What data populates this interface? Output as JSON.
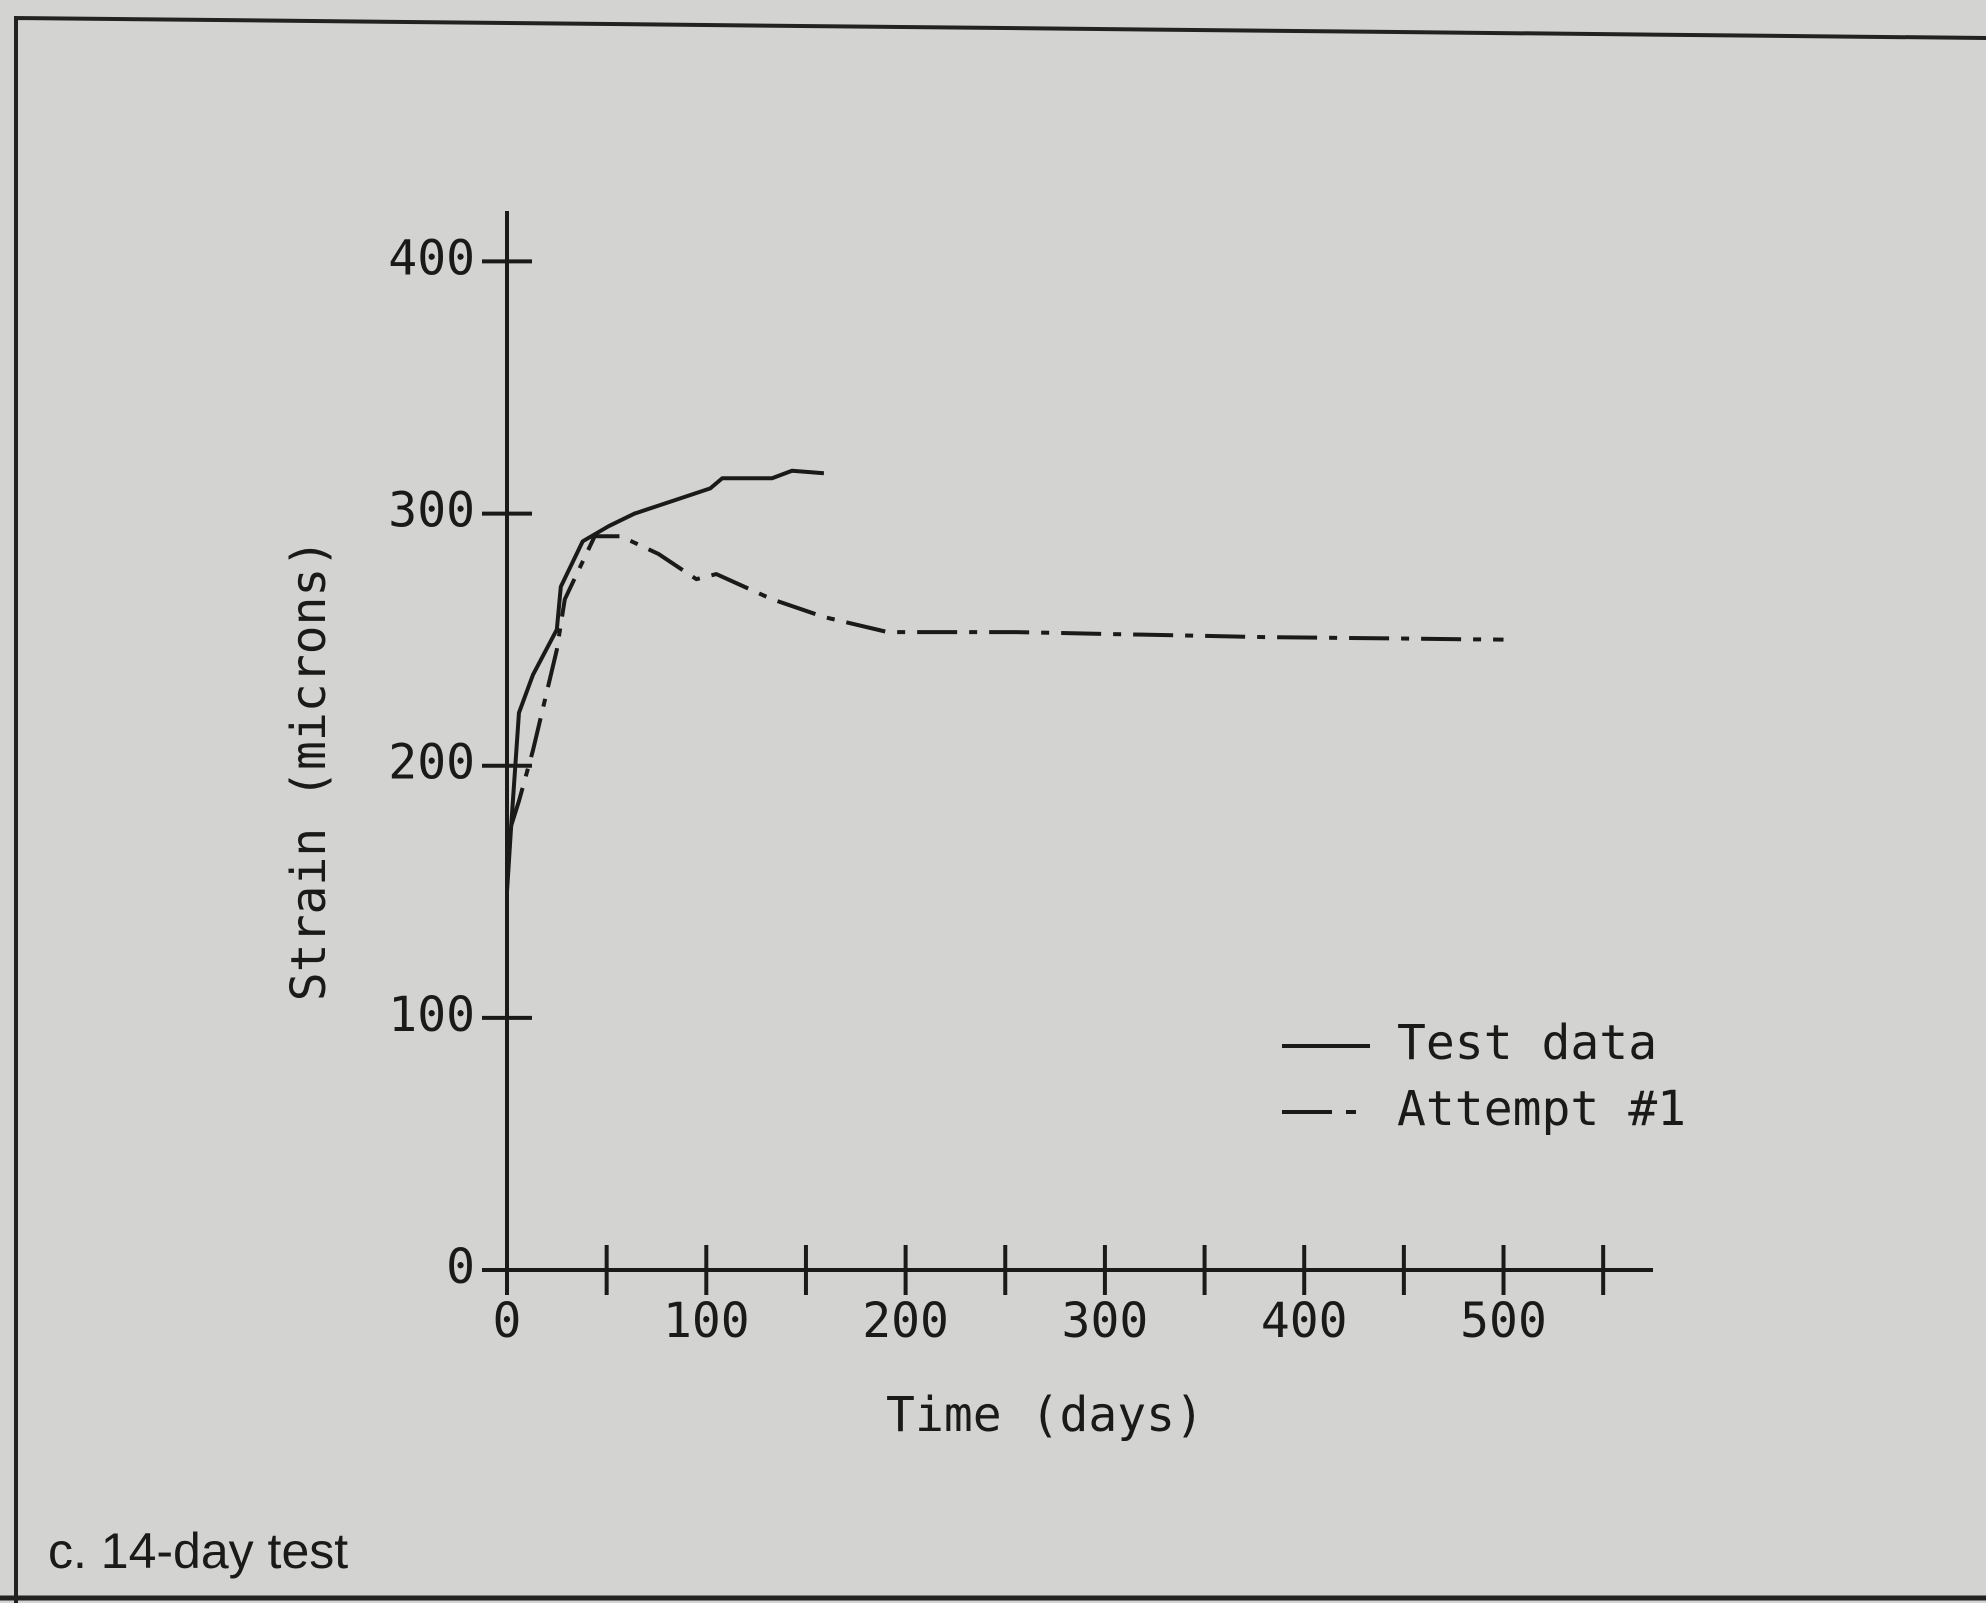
{
  "chart_data": {
    "type": "line",
    "caption": "c.  14-day test",
    "xlabel": "Time (days)",
    "ylabel": "Strain (microns)",
    "xlim": [
      0,
      575
    ],
    "ylim": [
      0,
      420
    ],
    "xticks": [
      0,
      100,
      200,
      300,
      400,
      500
    ],
    "xminorticks": [
      50,
      150,
      250,
      350,
      450,
      550
    ],
    "yticks": [
      0,
      100,
      200,
      300,
      400
    ],
    "legend": "lower right",
    "series": [
      {
        "name": "Test data",
        "color": "#1a1a1a",
        "style": "solid",
        "x": [
          0,
          2,
          6,
          13,
          25,
          27,
          38,
          51,
          64,
          83,
          102,
          108,
          133,
          143,
          159
        ],
        "values": [
          150,
          175,
          221,
          236,
          254,
          271,
          289,
          295,
          300,
          305,
          310,
          314,
          314,
          317,
          316
        ]
      },
      {
        "name": "Attempt #1",
        "color": "#1a1a1a",
        "style": "dashdot",
        "x": [
          2,
          6,
          13,
          25,
          29,
          44,
          57,
          76,
          95,
          105,
          133,
          159,
          191,
          254,
          381,
          500
        ],
        "values": [
          176,
          186,
          206,
          246,
          266,
          291,
          291,
          284,
          274,
          276,
          266,
          259,
          253,
          253,
          251,
          250
        ]
      }
    ]
  }
}
